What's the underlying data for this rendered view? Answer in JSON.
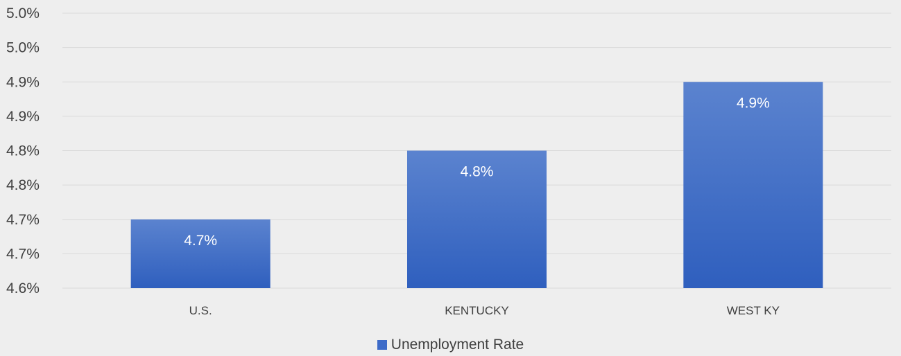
{
  "chart_data": {
    "type": "bar",
    "categories": [
      "U.S.",
      "KENTUCKY",
      "WEST KY"
    ],
    "series": [
      {
        "name": "Unemployment Rate",
        "values": [
          4.7,
          4.8,
          4.9
        ],
        "data_labels": [
          "4.7%",
          "4.8%",
          "4.9%"
        ]
      }
    ],
    "ylim": [
      4.6,
      5.0
    ],
    "y_ticks": [
      4.6,
      4.65,
      4.7,
      4.75,
      4.8,
      4.85,
      4.9,
      4.95,
      5.0
    ],
    "y_tick_labels": [
      "4.6%",
      "4.7%",
      "4.7%",
      "4.8%",
      "4.8%",
      "4.9%",
      "4.9%",
      "5.0%",
      "5.0%"
    ],
    "grid": true,
    "legend_position": "bottom",
    "colors": {
      "bar_top": "#5b83cf",
      "bar_bottom": "#2f5fbe",
      "legend": "#3d6bc8",
      "background": "#eeeeee",
      "grid": "#d9d9d9"
    }
  }
}
